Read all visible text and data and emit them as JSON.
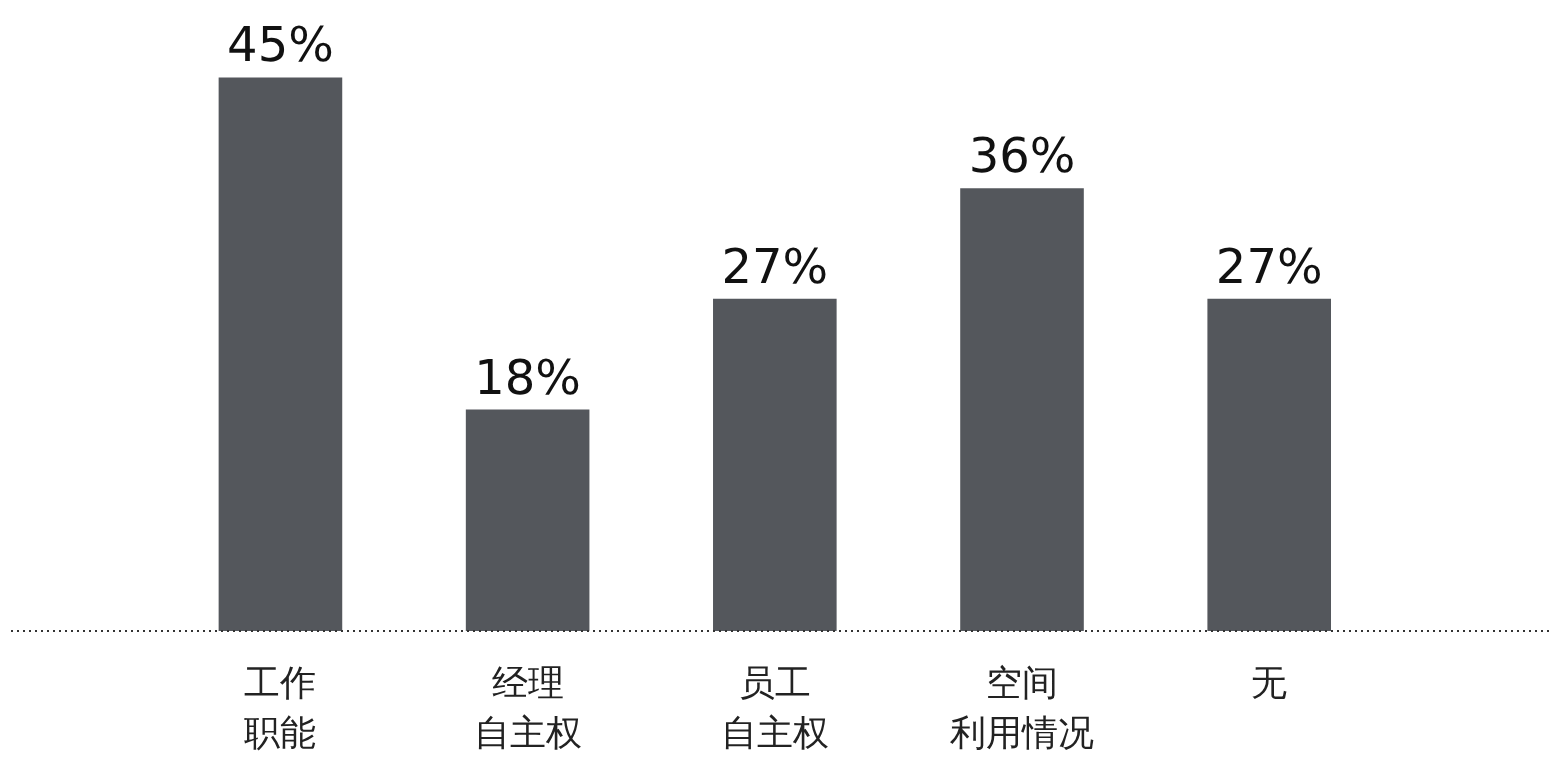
{
  "chart_data": {
    "type": "bar",
    "categories": [
      "工作职能",
      "经理自主权",
      "员工自主权",
      "空间利用情况",
      "无"
    ],
    "values": [
      45,
      18,
      27,
      36,
      27
    ],
    "value_labels": [
      "45%",
      "18%",
      "27%",
      "36%",
      "27%"
    ],
    "color": "#54575c"
  }
}
